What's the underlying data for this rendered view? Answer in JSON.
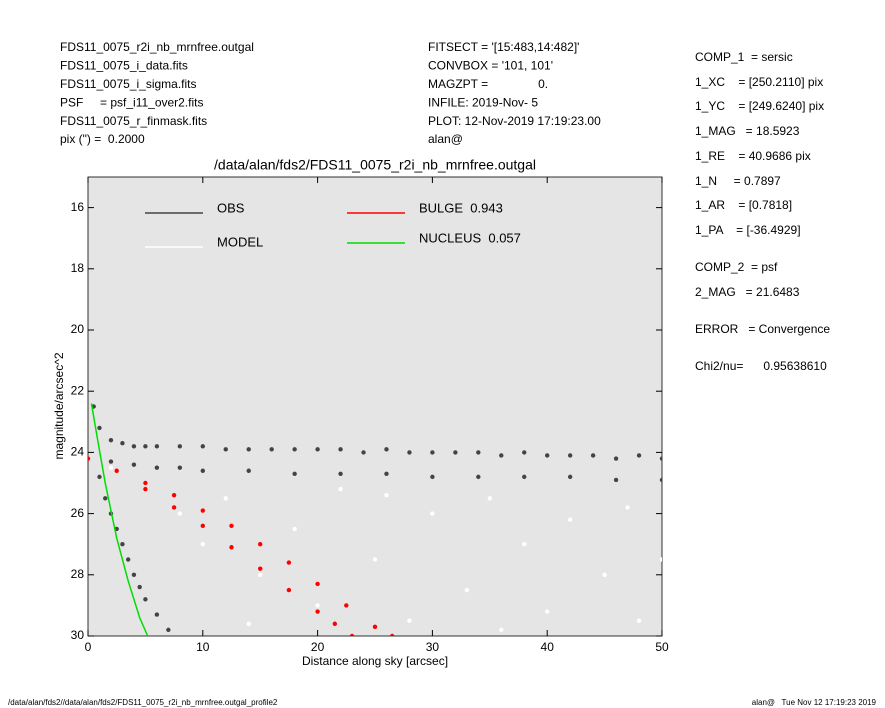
{
  "header": {
    "left": [
      "FDS11_0075_r2i_nb_mrnfree.outgal",
      "FDS11_0075_i_data.fits",
      "FDS11_0075_i_sigma.fits",
      "PSF     = psf_i11_over2.fits",
      "FDS11_0075_r_finmask.fits",
      "pix (\") =  0.2000"
    ],
    "middle": [
      "FITSECT = '[15:483,14:482]'",
      "CONVBOX = '101, 101'",
      "MAGZPT =               0.",
      "INFILE: 2019-Nov- 5",
      "PLOT: 12-Nov-2019 17:19:23.00",
      "alan@"
    ],
    "right": [
      "COMP_1  = sersic",
      "1_XC    = [250.2110] pix",
      "1_YC    = [249.6240] pix",
      "1_MAG   = 18.5923",
      "1_RE    = 40.9686 pix",
      "1_N     = 0.7897",
      "1_AR    = [0.7818]",
      "1_PA    = [-36.4929]",
      "COMP_2  = psf",
      "2_MAG   = 21.6483",
      "ERROR   = Convergence",
      "Chi2/nu=      0.95638610"
    ]
  },
  "footer": {
    "left": "/data/alan/fds2//data/alan/fds2/FDS11_0075_r2i_nb_mrnfree.outgal_profile2",
    "right": "alan@   Tue Nov 12 17:19:23 2019"
  },
  "chart_data": {
    "type": "scatter",
    "title": "/data/alan/fds2/FDS11_0075_r2i_nb_mrnfree.outgal",
    "x_label": "Distance along sky [arcsec]",
    "y_label": "magnitude/arcsec^2",
    "xlim": [
      0,
      50
    ],
    "xticks": [
      0,
      10,
      20,
      30,
      40,
      50
    ],
    "ylim": [
      30,
      15
    ],
    "yticks": [
      16,
      18,
      20,
      22,
      24,
      26,
      28,
      30
    ],
    "background": "#e5e5e5",
    "series": [
      {
        "name": "OBS",
        "color": "#444444",
        "kind": "points",
        "x": [
          0.5,
          1,
          2,
          3,
          4,
          5,
          6,
          8,
          10,
          12,
          14,
          16,
          18,
          20,
          22,
          24,
          26,
          28,
          30,
          32,
          34,
          36,
          38,
          40,
          42,
          44,
          46,
          48,
          50,
          2,
          4,
          6,
          8,
          10,
          14,
          18,
          22,
          26,
          30,
          34,
          38,
          42,
          46,
          50,
          1,
          1.5,
          2,
          2.5,
          3,
          3.5,
          4,
          4.5,
          5,
          6,
          7
        ],
        "values": [
          22.5,
          23.2,
          23.6,
          23.7,
          23.8,
          23.8,
          23.8,
          23.8,
          23.8,
          23.9,
          23.9,
          23.9,
          23.9,
          23.9,
          23.9,
          24.0,
          23.9,
          24.0,
          24.0,
          24.0,
          24.0,
          24.1,
          24.0,
          24.1,
          24.1,
          24.1,
          24.2,
          24.1,
          24.2,
          24.3,
          24.4,
          24.5,
          24.5,
          24.6,
          24.6,
          24.7,
          24.7,
          24.7,
          24.8,
          24.8,
          24.8,
          24.8,
          24.9,
          24.9,
          24.8,
          25.5,
          26.0,
          26.5,
          27.0,
          27.5,
          28.0,
          28.4,
          28.8,
          29.3,
          29.8
        ]
      },
      {
        "name": "MODEL",
        "color": "#ffffff",
        "kind": "points",
        "x": [
          2,
          5,
          8,
          10,
          12,
          15,
          18,
          20,
          22,
          25,
          28,
          30,
          33,
          35,
          38,
          40,
          42,
          45,
          47,
          50,
          48,
          36,
          14,
          26
        ],
        "values": [
          24.5,
          25,
          26,
          27,
          25.5,
          28,
          26.5,
          29,
          25.2,
          27.5,
          29.5,
          26,
          28.5,
          25.5,
          27,
          29.2,
          26.2,
          28,
          25.8,
          27.5,
          29.5,
          29.8,
          29.6,
          25.4
        ]
      },
      {
        "name": "BULGE  0.943",
        "color": "#ff0000",
        "kind": "points",
        "x": [
          0,
          2.5,
          5,
          7.5,
          10,
          12.5,
          15,
          17.5,
          20,
          22.5,
          25,
          26.5,
          5,
          7.5,
          10,
          12.5,
          15,
          17.5,
          20,
          21.5,
          23
        ],
        "values": [
          24.2,
          24.6,
          25.0,
          25.4,
          25.9,
          26.4,
          27.0,
          27.6,
          28.3,
          29.0,
          29.7,
          30.0,
          25.2,
          25.8,
          26.4,
          27.1,
          27.8,
          28.5,
          29.2,
          29.6,
          30.0
        ]
      },
      {
        "name": "NUCLEUS  0.057",
        "color": "#00dd00",
        "kind": "line",
        "x": [
          0.3,
          0.8,
          1.5,
          2.5,
          3.5,
          4.5,
          5.2
        ],
        "values": [
          22.4,
          23.5,
          25.0,
          26.8,
          28.2,
          29.4,
          30.0
        ]
      }
    ]
  }
}
